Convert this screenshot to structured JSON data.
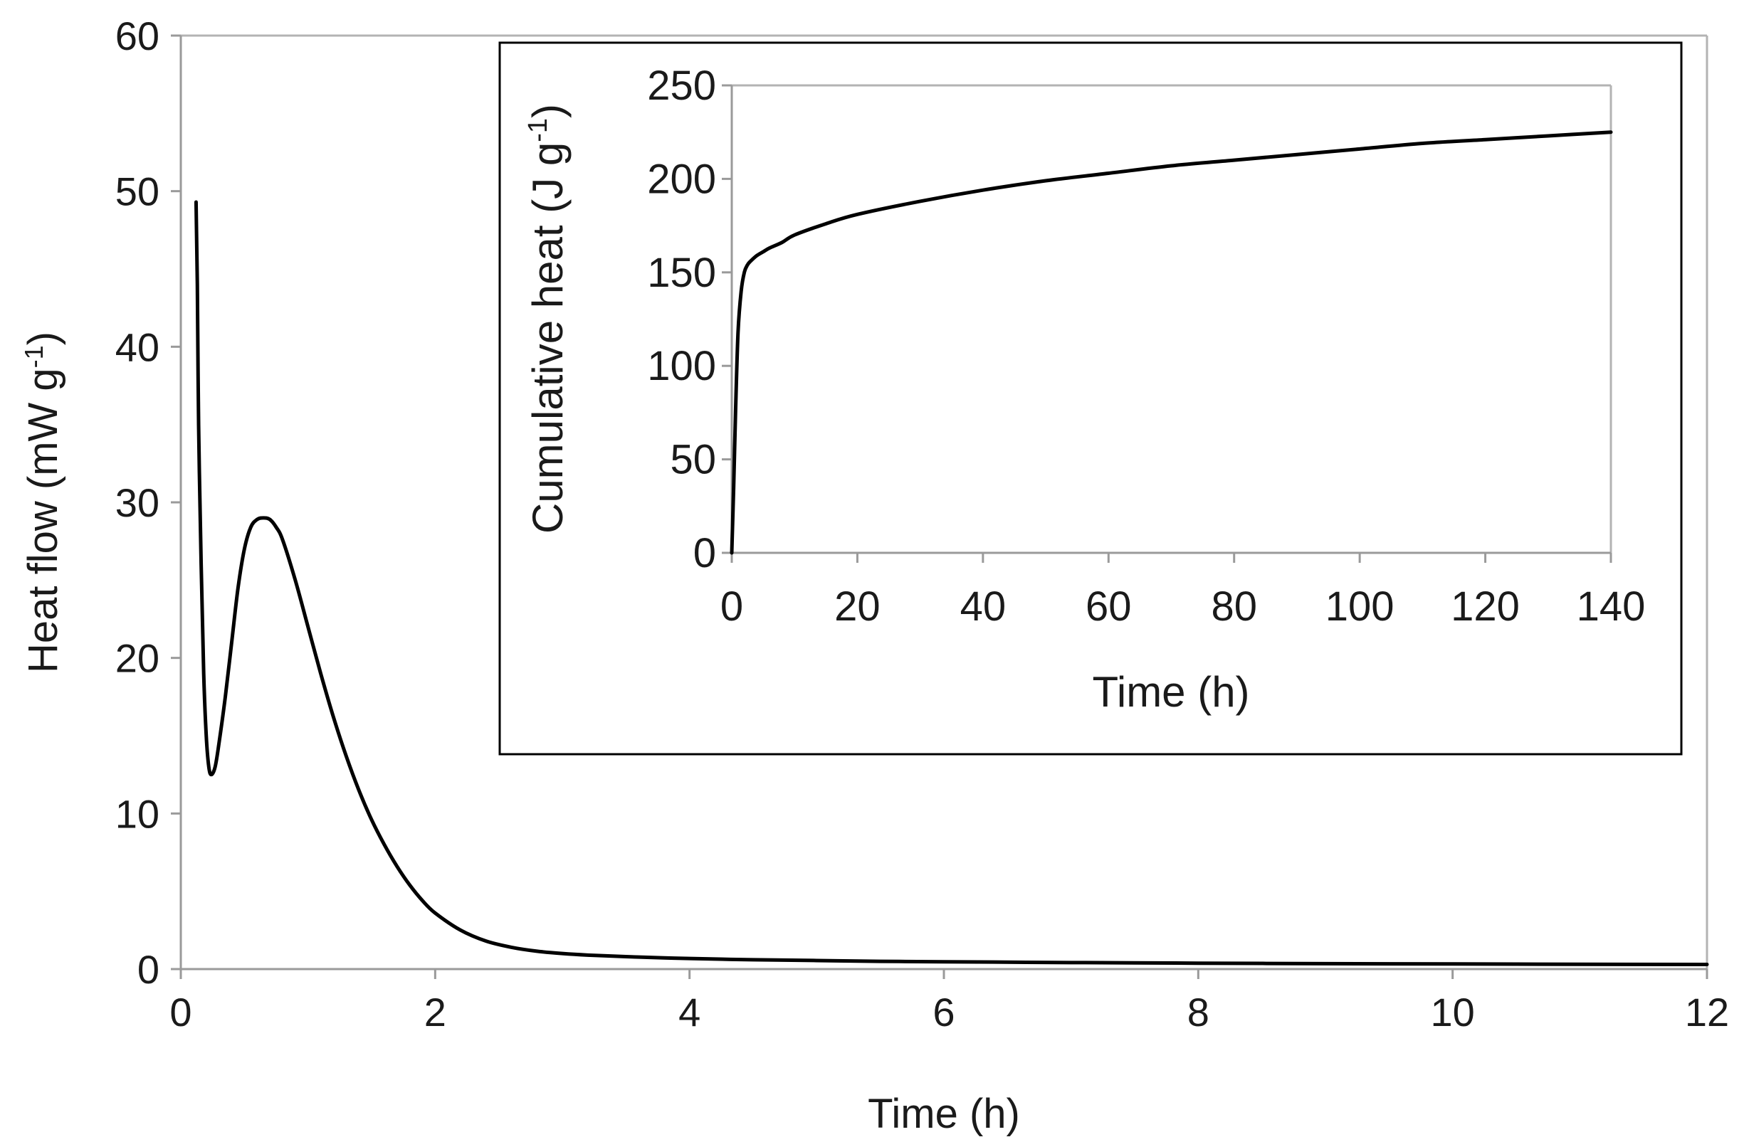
{
  "chart_data": [
    {
      "id": "main",
      "type": "line",
      "title": "",
      "xlabel": "Time (h)",
      "ylabel": "Heat flow (mW g",
      "ylabel_sup": "-1",
      "ylabel_close": ")",
      "xlim": [
        0,
        12
      ],
      "ylim": [
        0,
        60
      ],
      "xticks": [
        0,
        2,
        4,
        6,
        8,
        10,
        12
      ],
      "yticks": [
        0,
        10,
        20,
        30,
        40,
        50,
        60
      ],
      "grid": false,
      "series": [
        {
          "name": "Heat flow",
          "color": "#000000",
          "x": [
            0.12,
            0.13,
            0.14,
            0.16,
            0.18,
            0.2,
            0.22,
            0.24,
            0.27,
            0.3,
            0.35,
            0.4,
            0.45,
            0.5,
            0.55,
            0.6,
            0.65,
            0.7,
            0.75,
            0.8,
            0.9,
            1.0,
            1.1,
            1.2,
            1.3,
            1.4,
            1.5,
            1.6,
            1.7,
            1.8,
            1.9,
            2.0,
            2.2,
            2.4,
            2.6,
            2.8,
            3.0,
            3.2,
            3.5,
            3.8,
            4.0,
            4.5,
            5.0,
            5.5,
            6.0,
            7.0,
            8.0,
            9.0,
            10.0,
            11.0,
            12.0
          ],
          "values": [
            49.3,
            44.0,
            35.0,
            26.0,
            19.0,
            15.0,
            13.0,
            12.5,
            13.0,
            14.5,
            17.5,
            21.0,
            24.5,
            27.0,
            28.4,
            28.9,
            29.0,
            28.9,
            28.4,
            27.6,
            25.0,
            22.0,
            19.0,
            16.2,
            13.7,
            11.5,
            9.6,
            8.0,
            6.6,
            5.4,
            4.4,
            3.6,
            2.5,
            1.8,
            1.4,
            1.15,
            1.0,
            0.9,
            0.8,
            0.72,
            0.68,
            0.6,
            0.55,
            0.5,
            0.47,
            0.42,
            0.38,
            0.35,
            0.33,
            0.31,
            0.3
          ]
        }
      ]
    },
    {
      "id": "inset",
      "type": "line",
      "title": "",
      "xlabel": "Time (h)",
      "ylabel": "Cumulative heat (J g",
      "ylabel_sup": "-1",
      "ylabel_close": ")",
      "xlim": [
        0,
        140
      ],
      "ylim": [
        0,
        250
      ],
      "xticks": [
        0,
        20,
        40,
        60,
        80,
        100,
        120,
        140
      ],
      "yticks": [
        0,
        50,
        100,
        150,
        200,
        250
      ],
      "grid": false,
      "series": [
        {
          "name": "Cumulative heat",
          "color": "#000000",
          "x": [
            0,
            0.3,
            0.6,
            1.0,
            1.5,
            2.0,
            2.5,
            3.0,
            4.0,
            5.0,
            6.0,
            8.0,
            10,
            15,
            20,
            30,
            40,
            50,
            60,
            70,
            80,
            90,
            100,
            110,
            120,
            130,
            140
          ],
          "values": [
            0,
            35,
            75,
            118,
            140,
            150,
            154,
            156,
            159,
            161,
            163,
            166,
            170,
            176,
            181,
            188,
            194,
            199,
            203,
            207,
            210,
            213,
            216,
            219,
            221,
            223,
            225
          ]
        }
      ]
    }
  ]
}
